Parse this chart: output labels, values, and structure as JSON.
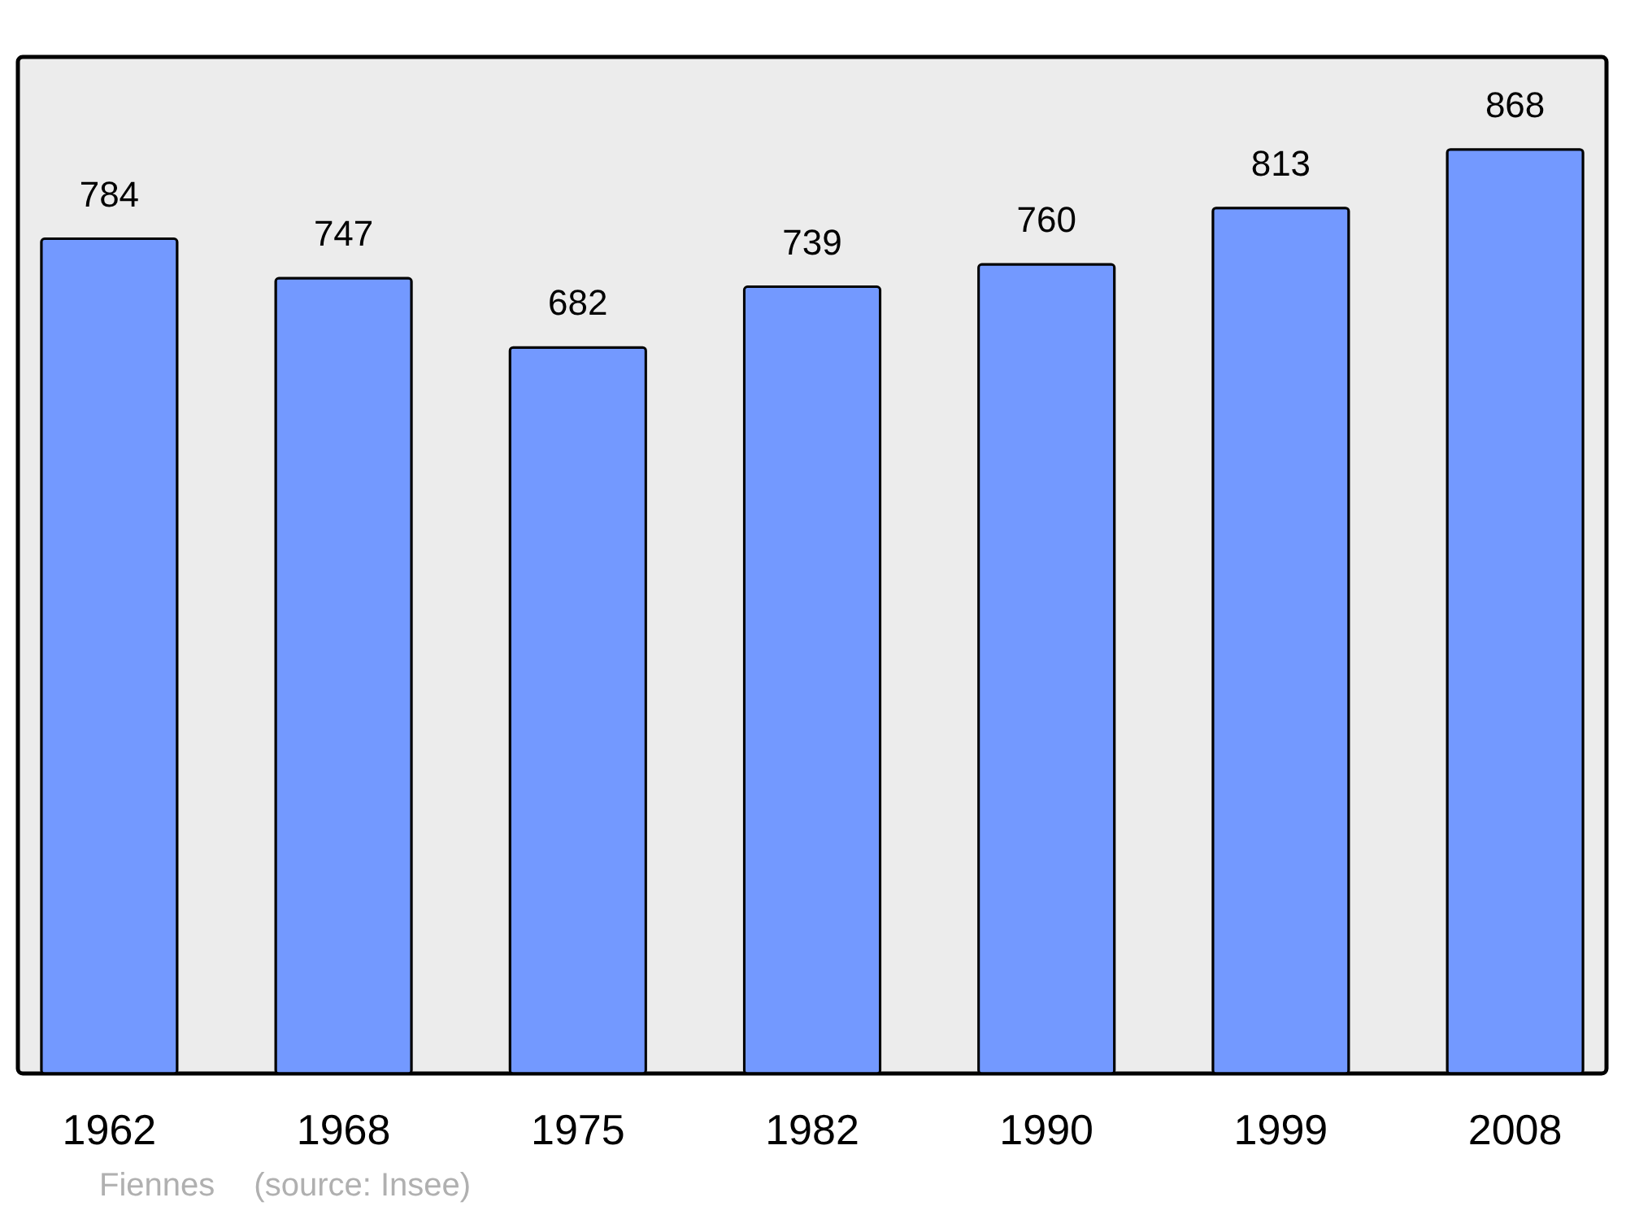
{
  "chart_data": {
    "type": "bar",
    "relative": false,
    "categories": [
      "1962",
      "1968",
      "1975",
      "1982",
      "1990",
      "1999",
      "2008"
    ],
    "values": [
      784,
      747,
      682,
      739,
      760,
      813,
      868
    ],
    "color": "#7399ff",
    "data_labels": true,
    "annotations": [
      "Fiennes",
      "(source: Insee)"
    ]
  }
}
